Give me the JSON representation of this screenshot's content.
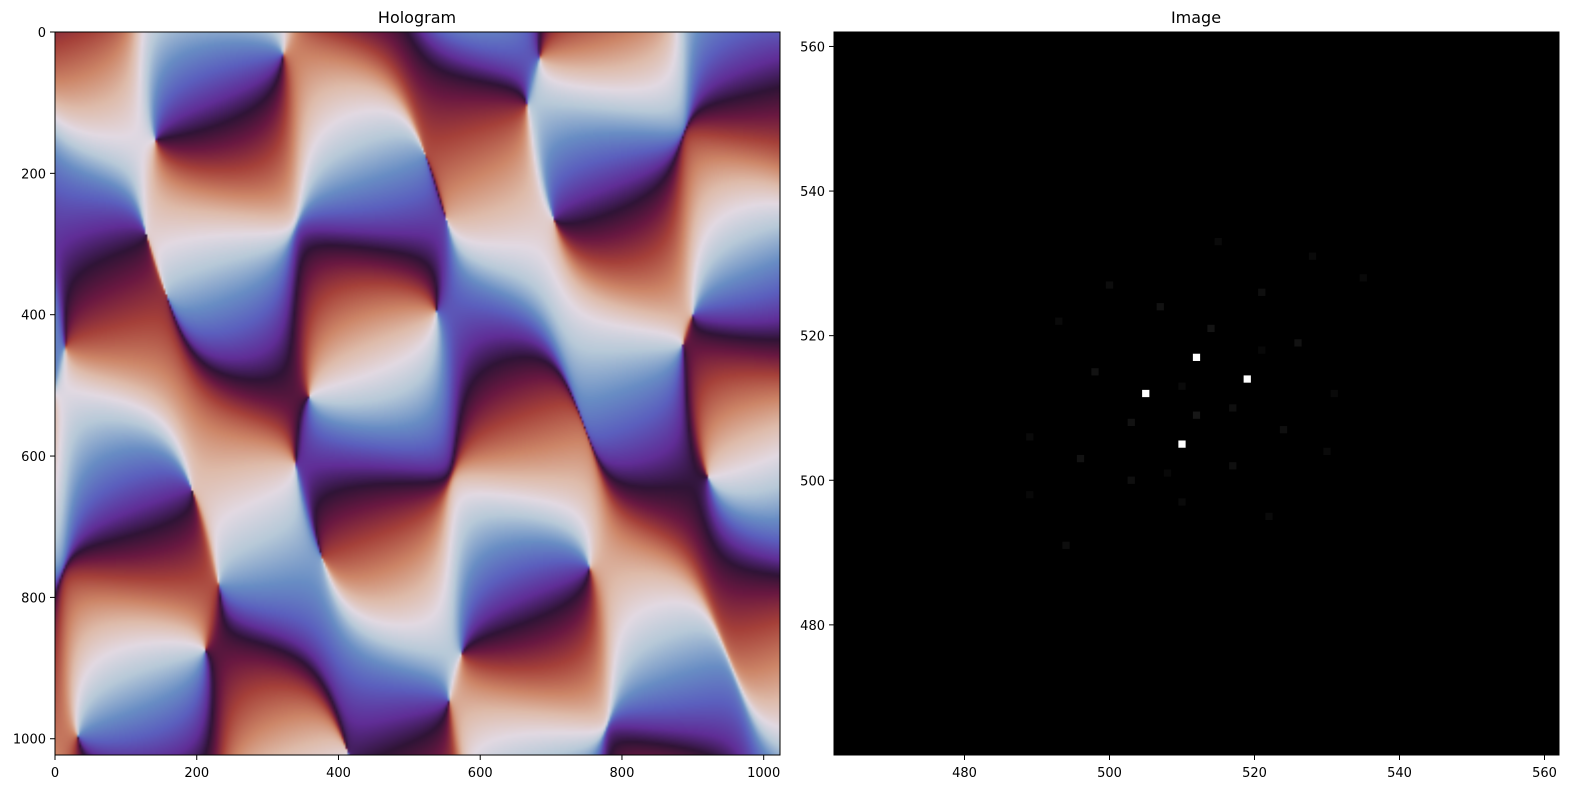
{
  "chart_data": [
    {
      "type": "heatmap",
      "title": "Hologram",
      "xlabel": "",
      "ylabel": "",
      "xlim": [
        0,
        1023
      ],
      "ylim": [
        1023,
        0
      ],
      "x_ticks": [
        0,
        200,
        400,
        600,
        800,
        1000
      ],
      "y_ticks": [
        0,
        200,
        400,
        600,
        800,
        1000
      ],
      "colormap": "twilight_shifted",
      "description_of_content": "",
      "wave_components": [
        {
          "kx": 0.0185,
          "ky": 0.0155,
          "phase": 0.0,
          "amp": 1.0
        },
        {
          "kx": -0.0155,
          "ky": 0.0185,
          "phase": 1.3,
          "amp": 1.0
        },
        {
          "kx": 0.0075,
          "ky": 0.0215,
          "phase": 2.1,
          "amp": 0.55
        },
        {
          "kx": 0.0245,
          "ky": -0.006,
          "phase": 0.7,
          "amp": 0.45
        }
      ]
    },
    {
      "type": "heatmap",
      "title": "Image",
      "xlabel": "",
      "ylabel": "",
      "xlim": [
        462,
        562
      ],
      "ylim": [
        462,
        562
      ],
      "x_ticks": [
        480,
        500,
        520,
        540,
        560
      ],
      "y_ticks": [
        480,
        500,
        520,
        540,
        560
      ],
      "colormap": "gray",
      "background": "#000000",
      "points": [
        {
          "x": 512,
          "y": 517,
          "v": 1.0
        },
        {
          "x": 505,
          "y": 512,
          "v": 1.0
        },
        {
          "x": 519,
          "y": 514,
          "v": 1.0
        },
        {
          "x": 510,
          "y": 505,
          "v": 1.0
        },
        {
          "x": 512,
          "y": 509,
          "v": 0.09
        },
        {
          "x": 514,
          "y": 521,
          "v": 0.08
        },
        {
          "x": 507,
          "y": 524,
          "v": 0.07
        },
        {
          "x": 503,
          "y": 508,
          "v": 0.07
        },
        {
          "x": 517,
          "y": 510,
          "v": 0.06
        },
        {
          "x": 498,
          "y": 515,
          "v": 0.07
        },
        {
          "x": 526,
          "y": 519,
          "v": 0.07
        },
        {
          "x": 496,
          "y": 503,
          "v": 0.07
        },
        {
          "x": 517,
          "y": 502,
          "v": 0.06
        },
        {
          "x": 524,
          "y": 507,
          "v": 0.06
        },
        {
          "x": 503,
          "y": 500,
          "v": 0.06
        },
        {
          "x": 521,
          "y": 526,
          "v": 0.06
        },
        {
          "x": 500,
          "y": 527,
          "v": 0.05
        },
        {
          "x": 494,
          "y": 491,
          "v": 0.05
        },
        {
          "x": 510,
          "y": 513,
          "v": 0.04
        },
        {
          "x": 515,
          "y": 533,
          "v": 0.04
        },
        {
          "x": 528,
          "y": 531,
          "v": 0.04
        },
        {
          "x": 493,
          "y": 522,
          "v": 0.04
        },
        {
          "x": 489,
          "y": 506,
          "v": 0.04
        },
        {
          "x": 530,
          "y": 504,
          "v": 0.04
        },
        {
          "x": 522,
          "y": 495,
          "v": 0.04
        },
        {
          "x": 510,
          "y": 497,
          "v": 0.04
        },
        {
          "x": 535,
          "y": 528,
          "v": 0.035
        },
        {
          "x": 531,
          "y": 512,
          "v": 0.035
        },
        {
          "x": 489,
          "y": 498,
          "v": 0.03
        },
        {
          "x": 508,
          "y": 501,
          "v": 0.03
        },
        {
          "x": 521,
          "y": 518,
          "v": 0.03
        }
      ]
    }
  ]
}
